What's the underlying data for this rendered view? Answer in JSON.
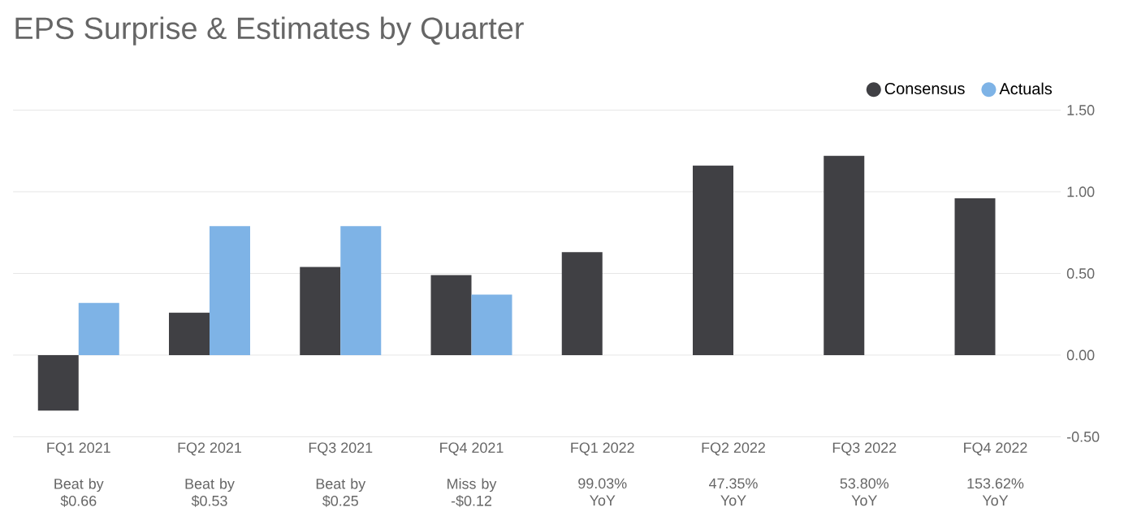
{
  "chart_data": {
    "type": "bar",
    "title": "EPS Surprise & Estimates by Quarter",
    "categories": [
      "FQ1 2021",
      "FQ2 2021",
      "FQ3 2021",
      "FQ4 2021",
      "FQ1 2022",
      "FQ2 2022",
      "FQ3 2022",
      "FQ4 2022"
    ],
    "series": [
      {
        "name": "Consensus",
        "color": "#404044",
        "values": [
          -0.34,
          0.26,
          0.54,
          0.49,
          0.63,
          1.16,
          1.22,
          0.96
        ]
      },
      {
        "name": "Actuals",
        "color": "#7eb3e6",
        "values": [
          0.32,
          0.79,
          0.79,
          0.37,
          null,
          null,
          null,
          null
        ]
      }
    ],
    "ylim": [
      -0.5,
      1.5
    ],
    "yticks": [
      {
        "value": -0.5,
        "label": "-0.50"
      },
      {
        "value": 0,
        "label": "0.00"
      },
      {
        "value": 0.5,
        "label": "0.50"
      },
      {
        "value": 1,
        "label": "1.00"
      },
      {
        "value": 1.5,
        "label": "1.50"
      }
    ],
    "grid": "y",
    "legend": "top right",
    "annotations": [
      "Beat by $0.66",
      "Beat by $0.53",
      "Beat by $0.25",
      "Miss by -$0.12",
      "99.03% YoY",
      "47.35% YoY",
      "53.80% YoY",
      "153.62% YoY"
    ]
  }
}
